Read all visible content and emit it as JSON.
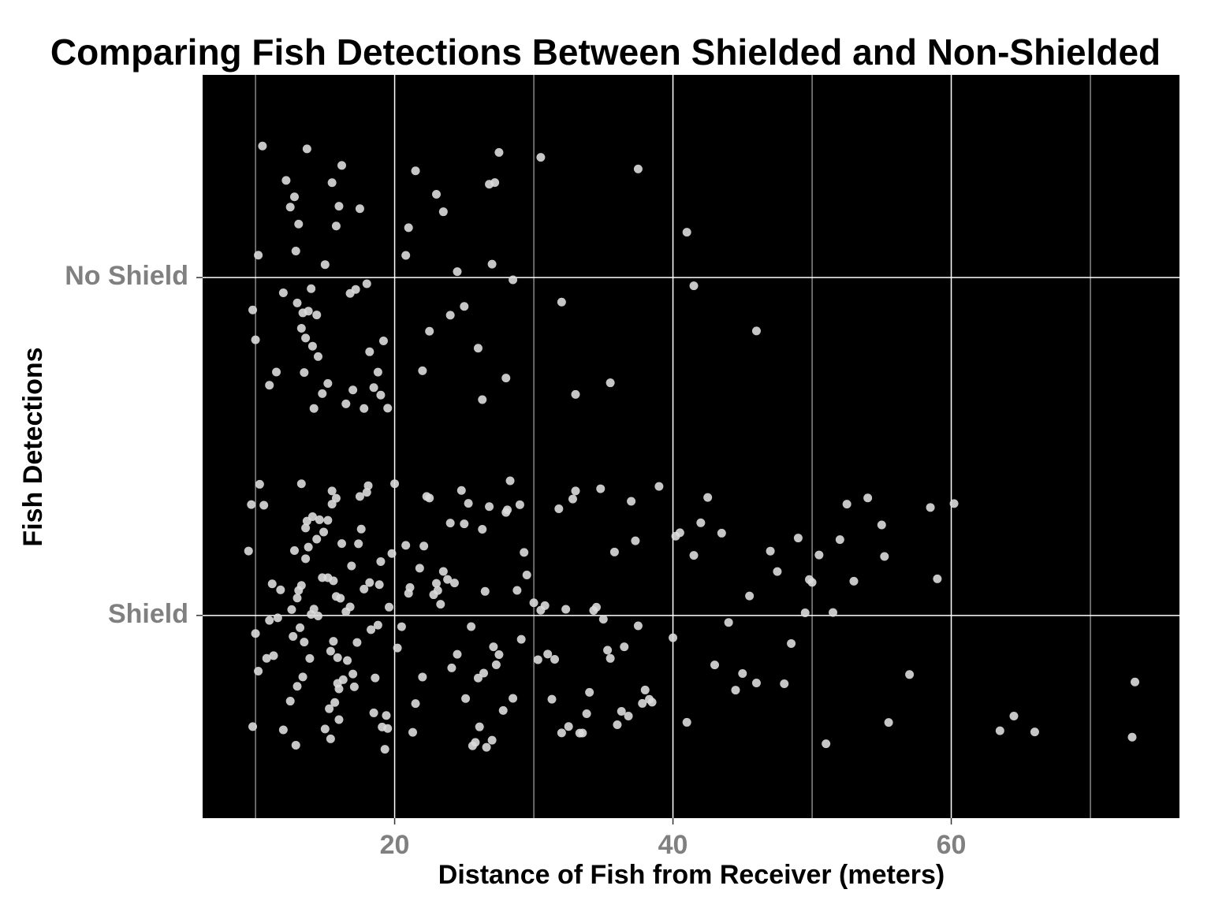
{
  "chart_data": {
    "type": "strip",
    "title": "Comparing Fish Detections Between Shielded and Non-Shielded",
    "xlabel": "Distance of Fish from Receiver (meters)",
    "ylabel": "Fish Detections",
    "categories": [
      "Shield",
      "No Shield"
    ],
    "values": [
      [
        12.5,
        12.8,
        13,
        13.2,
        13.4,
        13.6,
        13.8,
        14,
        14.2,
        12.6,
        12.9,
        13.1,
        13.3,
        13.5,
        13.7,
        13.9,
        12.7,
        13,
        13.3,
        13.6,
        14.1,
        15.2,
        15.4,
        15.6,
        15.8,
        16,
        16.2,
        15.3,
        15.5,
        15.7,
        15.9,
        16.1,
        15.4,
        15.6,
        15.8,
        16,
        15.2,
        15.5,
        15.9,
        16.3,
        14.4,
        14.6,
        14.8,
        15,
        14.5,
        14.9,
        9.5,
        9.8,
        10,
        10.3,
        10.6,
        11,
        11.3,
        11.6,
        12,
        9.7,
        10.2,
        10.8,
        11.2,
        11.8,
        16.5,
        17,
        17.5,
        18,
        18.5,
        19,
        19.5,
        20,
        16.8,
        17.3,
        17.8,
        18.3,
        18.8,
        19.3,
        19.8,
        16.6,
        17.1,
        17.6,
        18.1,
        18.6,
        19.1,
        19.6,
        20.2,
        16.9,
        17.4,
        18.2,
        18.9,
        19.4,
        20.5,
        21,
        21.5,
        22,
        22.5,
        23,
        23.5,
        24,
        24.5,
        25,
        25.5,
        26,
        26.5,
        27,
        27.5,
        28,
        28.5,
        29,
        29.5,
        20.8,
        21.3,
        21.8,
        22.3,
        22.8,
        23.3,
        23.8,
        24.3,
        24.8,
        25.3,
        25.8,
        26.3,
        26.8,
        27.3,
        27.8,
        28.3,
        28.8,
        29.3,
        21.1,
        22.1,
        23.1,
        24.1,
        25.1,
        26.1,
        27.1,
        28.1,
        29.1,
        26.4,
        26.6,
        25.6,
        30,
        30.5,
        31,
        31.5,
        32,
        32.5,
        33,
        33.5,
        34,
        34.5,
        35,
        35.5,
        36,
        36.5,
        37,
        37.5,
        38,
        38.5,
        39,
        30.3,
        31.3,
        32.3,
        33.3,
        34.3,
        35.3,
        36.3,
        37.3,
        38.3,
        30.8,
        31.8,
        32.8,
        33.8,
        34.8,
        35.8,
        36.8,
        37.8,
        40,
        40.5,
        41,
        42,
        42.5,
        43,
        44,
        44.5,
        45,
        46,
        47,
        47.5,
        48,
        49,
        49.5,
        50,
        50.5,
        51,
        52,
        53,
        54,
        55,
        40.2,
        41.5,
        43.5,
        45.5,
        48.5,
        49.8,
        51.5,
        52.5,
        55.2,
        55.5,
        57,
        58.5,
        59,
        60.2,
        63.5,
        64.5,
        66,
        73,
        73.2
      ],
      [
        10,
        10.5,
        11,
        12,
        12.8,
        13,
        13.3,
        13.5,
        13.8,
        14,
        14.2,
        14.5,
        15,
        15.5,
        16,
        16.5,
        17,
        17.5,
        18,
        18.2,
        18.5,
        19,
        19.5,
        10.2,
        11.5,
        12.5,
        13.1,
        13.6,
        14.8,
        15.8,
        16.8,
        17.8,
        18.8,
        9.8,
        12.2,
        13.4,
        14.1,
        15.2,
        16.2,
        17.2,
        21,
        21.5,
        22,
        22.5,
        23,
        23.5,
        24,
        25,
        26,
        26.3,
        27,
        27.5,
        28,
        28.5,
        30.5,
        32,
        33,
        35.5,
        37.5,
        41,
        41.5,
        46,
        20.8,
        24.5,
        26.8,
        27.2,
        19.2,
        12.9,
        13.7,
        14.4
      ]
    ],
    "color": "#dcdcdc",
    "background": "#000000",
    "xlim": [
      6.2,
      76.4
    ],
    "xticks": [
      20,
      40,
      60
    ],
    "xminor": [
      10,
      30,
      50,
      70
    ],
    "ylim": [
      0.4,
      2.6
    ],
    "jitter": 0.4,
    "grid": true
  }
}
